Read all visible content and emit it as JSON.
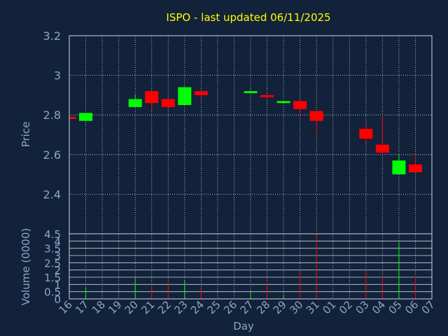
{
  "title": "ISPO - last updated 06/11/2025",
  "colors": {
    "background": "#12223a",
    "text": "#8aa6c8",
    "title": "#ffff00",
    "up": "#00ff00",
    "down": "#ff0000",
    "grid": "#cfd8e3",
    "frame": "#cfd8e3"
  },
  "chart_data": [
    {
      "type": "candlestick",
      "name": "price-panel",
      "ylabel": "Price",
      "ylim": [
        2.2,
        3.2
      ],
      "yticks": [
        "3.2",
        "3",
        "2.8",
        "2.6",
        "2.4"
      ],
      "ytick_values": [
        3.2,
        3.0,
        2.8,
        2.6,
        2.4
      ],
      "categories": [
        "16",
        "17",
        "18",
        "19",
        "20",
        "21",
        "22",
        "23",
        "24",
        "25",
        "26",
        "27",
        "28",
        "29",
        "30",
        "31",
        "01",
        "02",
        "03",
        "04",
        "05",
        "06",
        "07"
      ],
      "candles": [
        {
          "x": "16",
          "open": 2.79,
          "high": 2.79,
          "low": 2.78,
          "close": 2.78
        },
        {
          "x": "17",
          "open": 2.77,
          "high": 2.81,
          "low": 2.77,
          "close": 2.81
        },
        {
          "x": "20",
          "open": 2.84,
          "high": 2.9,
          "low": 2.84,
          "close": 2.88
        },
        {
          "x": "21",
          "open": 2.92,
          "high": 2.92,
          "low": 2.82,
          "close": 2.86
        },
        {
          "x": "22",
          "open": 2.88,
          "high": 2.88,
          "low": 2.84,
          "close": 2.84
        },
        {
          "x": "23",
          "open": 2.85,
          "high": 2.94,
          "low": 2.85,
          "close": 2.94
        },
        {
          "x": "24",
          "open": 2.92,
          "high": 2.92,
          "low": 2.88,
          "close": 2.9
        },
        {
          "x": "27",
          "open": 2.91,
          "high": 2.92,
          "low": 2.91,
          "close": 2.92
        },
        {
          "x": "28",
          "open": 2.9,
          "high": 2.91,
          "low": 2.87,
          "close": 2.89
        },
        {
          "x": "29",
          "open": 2.86,
          "high": 2.87,
          "low": 2.86,
          "close": 2.87
        },
        {
          "x": "30",
          "open": 2.87,
          "high": 2.88,
          "low": 2.8,
          "close": 2.83
        },
        {
          "x": "31",
          "open": 2.82,
          "high": 2.82,
          "low": 2.7,
          "close": 2.77
        },
        {
          "x": "03",
          "open": 2.73,
          "high": 2.75,
          "low": 2.66,
          "close": 2.68
        },
        {
          "x": "04",
          "open": 2.65,
          "high": 2.8,
          "low": 2.6,
          "close": 2.61
        },
        {
          "x": "05",
          "open": 2.5,
          "high": 2.6,
          "low": 2.5,
          "close": 2.57
        },
        {
          "x": "06",
          "open": 2.55,
          "high": 2.6,
          "low": 2.51,
          "close": 2.51
        }
      ]
    },
    {
      "type": "bar",
      "name": "volume-panel",
      "ylabel": "Volume (0000)",
      "xlabel": "Day",
      "ylim": [
        0,
        4.5
      ],
      "yticks": [
        "4.5",
        "4",
        "3.5",
        "3",
        "2.5",
        "2",
        "1.5",
        "1",
        "0.5",
        "0"
      ],
      "ytick_values": [
        4.5,
        4,
        3.5,
        3,
        2.5,
        2,
        1.5,
        1,
        0.5,
        0
      ],
      "categories": [
        "16",
        "17",
        "18",
        "19",
        "20",
        "21",
        "22",
        "23",
        "24",
        "25",
        "26",
        "27",
        "28",
        "29",
        "30",
        "31",
        "01",
        "02",
        "03",
        "04",
        "05",
        "06",
        "07"
      ],
      "bars": [
        {
          "x": "17",
          "value": 0.8,
          "dir": "up"
        },
        {
          "x": "20",
          "value": 1.4,
          "dir": "up"
        },
        {
          "x": "21",
          "value": 0.9,
          "dir": "down"
        },
        {
          "x": "22",
          "value": 1.3,
          "dir": "down"
        },
        {
          "x": "23",
          "value": 1.3,
          "dir": "up"
        },
        {
          "x": "24",
          "value": 0.7,
          "dir": "down"
        },
        {
          "x": "27",
          "value": 0.5,
          "dir": "up"
        },
        {
          "x": "28",
          "value": 1.2,
          "dir": "down"
        },
        {
          "x": "29",
          "value": 0.3,
          "dir": "up"
        },
        {
          "x": "30",
          "value": 1.8,
          "dir": "down"
        },
        {
          "x": "31",
          "value": 4.5,
          "dir": "down"
        },
        {
          "x": "03",
          "value": 1.8,
          "dir": "down"
        },
        {
          "x": "04",
          "value": 1.6,
          "dir": "down"
        },
        {
          "x": "05",
          "value": 3.9,
          "dir": "up"
        },
        {
          "x": "06",
          "value": 1.6,
          "dir": "down"
        }
      ]
    }
  ]
}
